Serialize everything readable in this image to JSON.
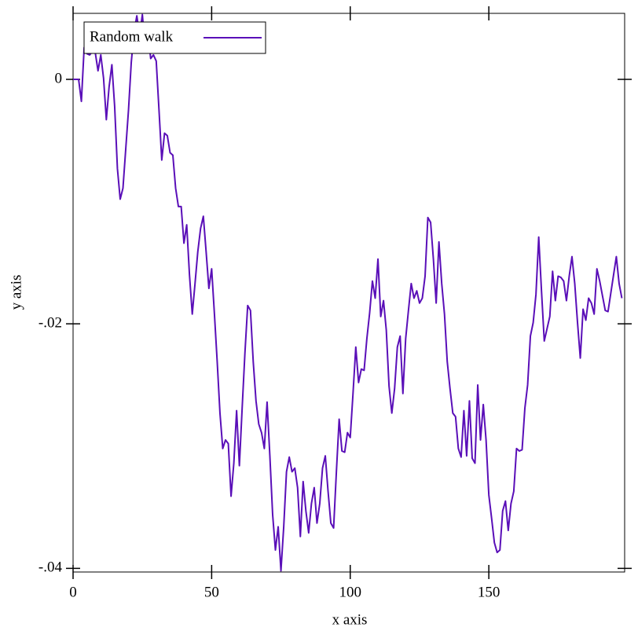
{
  "chart_data": {
    "type": "line",
    "xlabel": "x axis",
    "ylabel": "y axis",
    "x": [
      0,
      1,
      2,
      3,
      4,
      5,
      6,
      7,
      8,
      9,
      10,
      11,
      12,
      13,
      14,
      15,
      16,
      17,
      18,
      19,
      20,
      21,
      22,
      23,
      24,
      25,
      26,
      27,
      28,
      29,
      30,
      31,
      32,
      33,
      34,
      35,
      36,
      37,
      38,
      39,
      40,
      41,
      42,
      43,
      44,
      45,
      46,
      47,
      48,
      49,
      50,
      51,
      52,
      53,
      54,
      55,
      56,
      57,
      58,
      59,
      60,
      61,
      62,
      63,
      64,
      65,
      66,
      67,
      68,
      69,
      70,
      71,
      72,
      73,
      74,
      75,
      76,
      77,
      78,
      79,
      80,
      81,
      82,
      83,
      84,
      85,
      86,
      87,
      88,
      89,
      90,
      91,
      92,
      93,
      94,
      95,
      96,
      97,
      98,
      99,
      100,
      101,
      102,
      103,
      104,
      105,
      106,
      107,
      108,
      109,
      110,
      111,
      112,
      113,
      114,
      115,
      116,
      117,
      118,
      119,
      120,
      121,
      122,
      123,
      124,
      125,
      126,
      127,
      128,
      129,
      130,
      131,
      132,
      133,
      134,
      135,
      136,
      137,
      138,
      139,
      140,
      141,
      142,
      143,
      144,
      145,
      146,
      147,
      148,
      149,
      150,
      151,
      152,
      153,
      154,
      155,
      156,
      157,
      158,
      159,
      160,
      161,
      162,
      163,
      164,
      165,
      166,
      167,
      168,
      169,
      170,
      171,
      172,
      173,
      174,
      175,
      176,
      177,
      178,
      179,
      180,
      181,
      182,
      183,
      184,
      185,
      186,
      187,
      188,
      189,
      190,
      191,
      192,
      193,
      194,
      195,
      196,
      197,
      198
    ],
    "series": [
      {
        "name": "Random walk",
        "color": "#5a0fb8",
        "values": [
          0,
          0,
          0,
          -0.0018,
          0.0026,
          0.0021,
          0.002,
          0.0023,
          0.0022,
          0.0007,
          0.002,
          0.0001,
          -0.0033,
          -0.0006,
          0.0012,
          -0.0022,
          -0.0073,
          -0.0098,
          -0.0089,
          -0.0057,
          -0.0025,
          0.0014,
          0.0039,
          0.0052,
          0.0036,
          0.0053,
          0.0026,
          0.0039,
          0.0017,
          0.002,
          0.0015,
          -0.0025,
          -0.0066,
          -0.0044,
          -0.0046,
          -0.006,
          -0.0062,
          -0.0089,
          -0.0104,
          -0.0104,
          -0.0134,
          -0.0119,
          -0.016,
          -0.0192,
          -0.0167,
          -0.0141,
          -0.0122,
          -0.0112,
          -0.0141,
          -0.0171,
          -0.0155,
          -0.0192,
          -0.0231,
          -0.0273,
          -0.0302,
          -0.0295,
          -0.0298,
          -0.0341,
          -0.0314,
          -0.0271,
          -0.0316,
          -0.0269,
          -0.0224,
          -0.0185,
          -0.0189,
          -0.0231,
          -0.0263,
          -0.0282,
          -0.0289,
          -0.0302,
          -0.0264,
          -0.0308,
          -0.0356,
          -0.0385,
          -0.0366,
          -0.0402,
          -0.0366,
          -0.0321,
          -0.0309,
          -0.0321,
          -0.0318,
          -0.0334,
          -0.0374,
          -0.0329,
          -0.0353,
          -0.0371,
          -0.0347,
          -0.0334,
          -0.0363,
          -0.0347,
          -0.0318,
          -0.0308,
          -0.0337,
          -0.0363,
          -0.0367,
          -0.0321,
          -0.0278,
          -0.0304,
          -0.0305,
          -0.0289,
          -0.0293,
          -0.0257,
          -0.0219,
          -0.0248,
          -0.0237,
          -0.0238,
          -0.0212,
          -0.0191,
          -0.0165,
          -0.0179,
          -0.0147,
          -0.0194,
          -0.0181,
          -0.0205,
          -0.0251,
          -0.0273,
          -0.0253,
          -0.0219,
          -0.021,
          -0.0257,
          -0.0212,
          -0.0189,
          -0.0167,
          -0.0179,
          -0.0173,
          -0.0183,
          -0.0179,
          -0.0161,
          -0.0113,
          -0.0117,
          -0.0147,
          -0.0183,
          -0.0133,
          -0.0167,
          -0.0192,
          -0.0231,
          -0.0253,
          -0.0273,
          -0.0276,
          -0.0302,
          -0.0309,
          -0.0271,
          -0.0308,
          -0.0263,
          -0.031,
          -0.0314,
          -0.025,
          -0.0295,
          -0.0266,
          -0.0295,
          -0.034,
          -0.0359,
          -0.0379,
          -0.0387,
          -0.0385,
          -0.0353,
          -0.0345,
          -0.0369,
          -0.0347,
          -0.0337,
          -0.0302,
          -0.0304,
          -0.0303,
          -0.0269,
          -0.025,
          -0.021,
          -0.0199,
          -0.0176,
          -0.0129,
          -0.0173,
          -0.0214,
          -0.0204,
          -0.0194,
          -0.0157,
          -0.0181,
          -0.0161,
          -0.0162,
          -0.0165,
          -0.0181,
          -0.0161,
          -0.0145,
          -0.0167,
          -0.0199,
          -0.0228,
          -0.0188,
          -0.0197,
          -0.0179,
          -0.0183,
          -0.0192,
          -0.0155,
          -0.0165,
          -0.0177,
          -0.0189,
          -0.019,
          -0.0175,
          -0.016,
          -0.0145,
          -0.0167,
          -0.0179
        ]
      }
    ],
    "xlim": [
      0,
      199
    ],
    "ylim": [
      -0.0403,
      0.0054
    ],
    "xticks": [
      0,
      50,
      100,
      150
    ],
    "yticks": [
      0,
      {
        "value": -0.02,
        "label": "-.02"
      },
      {
        "value": -0.04,
        "label": "-.04"
      }
    ],
    "legend": "upper-left"
  }
}
